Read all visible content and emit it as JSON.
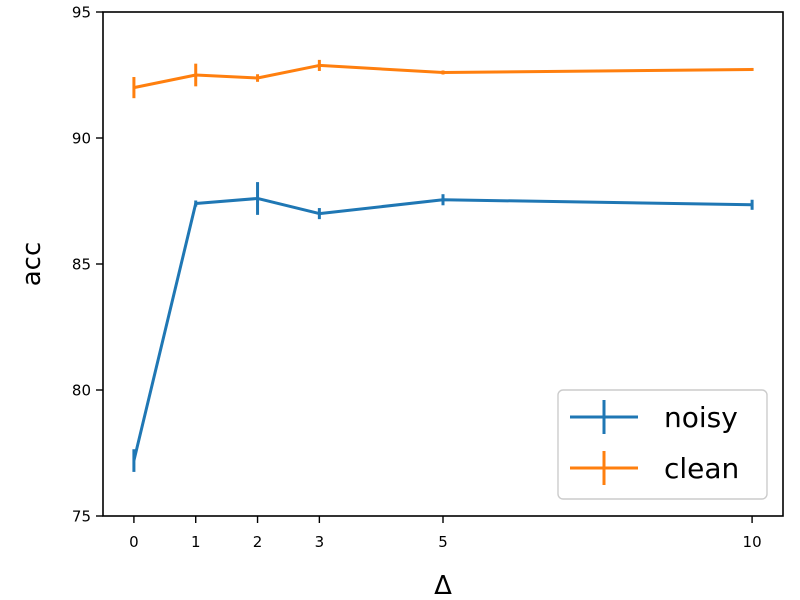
{
  "chart_data": {
    "type": "line",
    "title": "",
    "xlabel": "Δ",
    "ylabel": "acc",
    "x": [
      0,
      1,
      2,
      3,
      5,
      10
    ],
    "xlim": [
      -0.5,
      10.5
    ],
    "ylim": [
      75,
      95
    ],
    "xticks": [
      "0",
      "1",
      "2",
      "3",
      "5",
      "10"
    ],
    "yticks": [
      "75",
      "80",
      "85",
      "90",
      "95"
    ],
    "grid": false,
    "legend_position": "bottom-right",
    "series": [
      {
        "name": "noisy",
        "color": "#1f77b4",
        "values": [
          77.2,
          87.4,
          87.6,
          87.0,
          87.55,
          87.35
        ],
        "errors": [
          0.45,
          0.12,
          0.65,
          0.22,
          0.22,
          0.2
        ]
      },
      {
        "name": "clean",
        "color": "#ff7f0e",
        "values": [
          92.0,
          92.5,
          92.38,
          92.88,
          92.6,
          92.72
        ],
        "errors": [
          0.42,
          0.45,
          0.15,
          0.22,
          0.08,
          0.06
        ]
      }
    ]
  }
}
